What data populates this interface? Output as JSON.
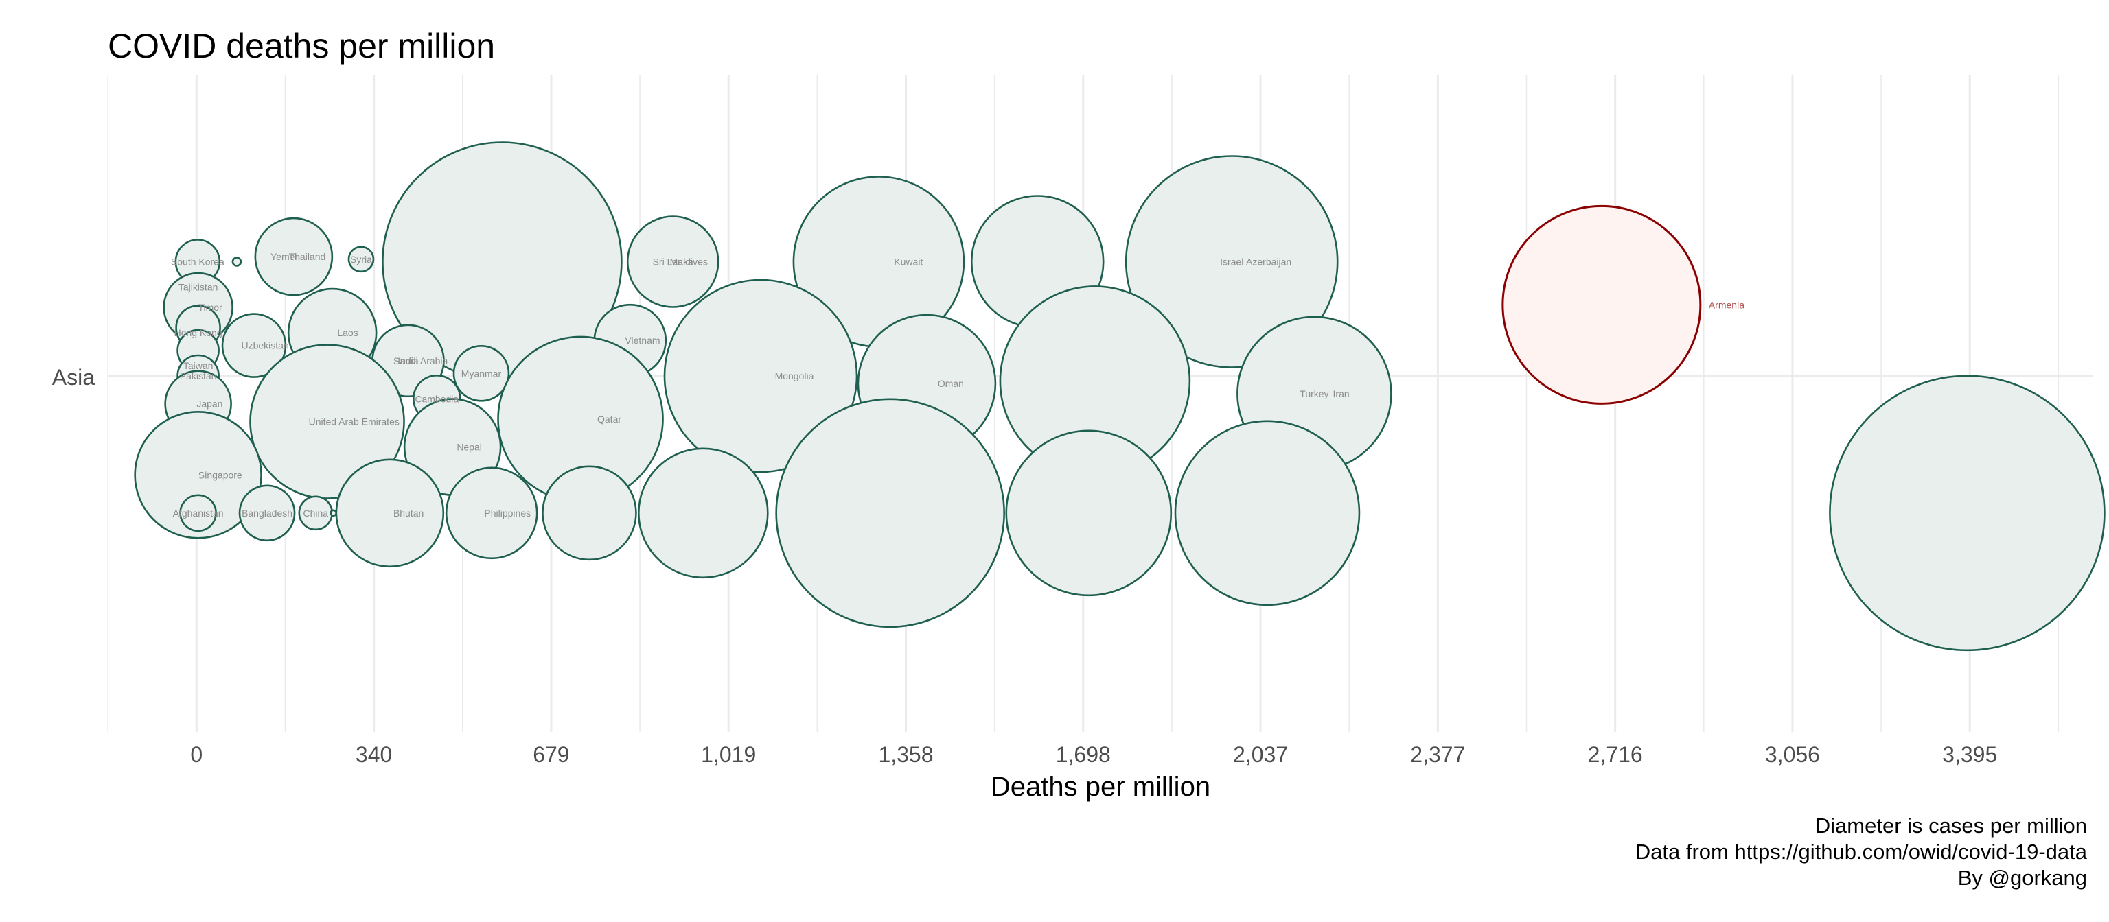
{
  "chart_data": {
    "type": "scatter",
    "title": "COVID deaths per million",
    "xlabel": "Deaths per million",
    "ylabel": "",
    "y_categories": [
      "Asia"
    ],
    "x_ticks": [
      "0",
      "340",
      "679",
      "1,019",
      "1,358",
      "1,698",
      "2,037",
      "2,377",
      "2,716",
      "3,056",
      "3,395"
    ],
    "xlim": [
      -170,
      3630
    ],
    "grid": true,
    "caption": [
      "Diameter is cases per million",
      "Data from https://github.com/owid/covid-19-data",
      "By @gorkang"
    ],
    "colors": {
      "bubble_stroke": "#1f5f4f",
      "bubble_fill": "#e8efed",
      "highlight_stroke": "#8b0000",
      "highlight_fill": "#fff3f2",
      "grid": "#ebebeb"
    },
    "highlight": "Armenia",
    "bubbles": [
      {
        "label": "South Korea",
        "x": 2,
        "offset": 0.45,
        "size": 0.16
      },
      {
        "label": "",
        "x": 77,
        "offset": 0.45,
        "size": 0.03
      },
      {
        "label": "Thailand",
        "x": 186,
        "offset": 0.47,
        "size": 0.28
      },
      {
        "label": "Yemen",
        "x": 170,
        "offset": 0.47,
        "size": 0
      },
      {
        "label": "Syria",
        "x": 315,
        "offset": 0.46,
        "size": 0.09
      },
      {
        "label": "",
        "x": 585,
        "offset": 0.45,
        "size": 0.87
      },
      {
        "label": "Maldives",
        "x": 912,
        "offset": 0.45,
        "size": 0.33
      },
      {
        "label": "Sri Lanka",
        "x": 912,
        "offset": 0.45,
        "size": 0
      },
      {
        "label": "Kuwait",
        "x": 1306,
        "offset": 0.45,
        "size": 0.62
      },
      {
        "label": "",
        "x": 1610,
        "offset": 0.45,
        "size": 0.48
      },
      {
        "label": "Azerbaijan",
        "x": 1982,
        "offset": 0.45,
        "size": 0.77
      },
      {
        "label": "Israel",
        "x": 1982,
        "offset": 0.45,
        "size": 0
      },
      {
        "label": "Tajikistan",
        "x": 3,
        "offset": 0.35,
        "size": 0.07
      },
      {
        "label": "Timor",
        "x": 3,
        "offset": 0.27,
        "size": 0.25
      },
      {
        "label": "Hong Kong",
        "x": 3,
        "offset": 0.17,
        "size": 0.07
      },
      {
        "label": "Uzbekistan",
        "x": 110,
        "offset": 0.12,
        "size": 0.23
      },
      {
        "label": "Laos",
        "x": 260,
        "offset": 0.17,
        "size": 0.32
      },
      {
        "label": "India",
        "x": 405,
        "offset": 0.06,
        "size": 0
      },
      {
        "label": "Saudi Arabia",
        "x": 405,
        "offset": 0.06,
        "size": 0.26
      },
      {
        "label": "Vietnam",
        "x": 830,
        "offset": 0.14,
        "size": 0.26
      },
      {
        "label": "Mongolia",
        "x": 1080,
        "offset": 0,
        "size": 0.7
      },
      {
        "label": "Oman",
        "x": 1398,
        "offset": -0.03,
        "size": 0.5
      },
      {
        "label": "",
        "x": 1720,
        "offset": -0.02,
        "size": 0.69
      },
      {
        "label": "Iran",
        "x": 2140,
        "offset": -0.07,
        "size": 0.56
      },
      {
        "label": "Turkey",
        "x": 2140,
        "offset": -0.07,
        "size": 0
      },
      {
        "label": "Armenia",
        "x": 2690,
        "offset": 0.28,
        "size": 0.72
      },
      {
        "label": "",
        "x": 3,
        "offset": 0.19,
        "size": 0.16
      },
      {
        "label": "",
        "x": 3,
        "offset": 0.1,
        "size": 0.15
      },
      {
        "label": "Taiwan",
        "x": 3,
        "offset": 0.04,
        "size": 0.05
      },
      {
        "label": "Pakistan",
        "x": 3,
        "offset": 0,
        "size": 0.15
      },
      {
        "label": "Japan",
        "x": 3,
        "offset": -0.11,
        "size": 0.24
      },
      {
        "label": "Myanmar",
        "x": 545,
        "offset": 0.01,
        "size": 0.2
      },
      {
        "label": "Cambodia",
        "x": 460,
        "offset": -0.09,
        "size": 0.17
      },
      {
        "label": "United Arab Emirates",
        "x": 250,
        "offset": -0.18,
        "size": 0.56
      },
      {
        "label": "Qatar",
        "x": 735,
        "offset": -0.17,
        "size": 0.6
      },
      {
        "label": "Nepal",
        "x": 490,
        "offset": -0.28,
        "size": 0.35
      },
      {
        "label": "Singapore",
        "x": 3,
        "offset": -0.39,
        "size": 0.46
      },
      {
        "label": "Afghanistan",
        "x": 3,
        "offset": -0.54,
        "size": 0.13
      },
      {
        "label": "Bangladesh",
        "x": 135,
        "offset": -0.54,
        "size": 0.2
      },
      {
        "label": "China",
        "x": 228,
        "offset": -0.54,
        "size": 0.12
      },
      {
        "label": "",
        "x": 262,
        "offset": -0.54,
        "size": 0.02
      },
      {
        "label": "Bhutan",
        "x": 370,
        "offset": -0.54,
        "size": 0.39
      },
      {
        "label": "Philippines",
        "x": 565,
        "offset": -0.54,
        "size": 0.33
      },
      {
        "label": "",
        "x": 752,
        "offset": -0.54,
        "size": 0.34
      },
      {
        "label": "",
        "x": 970,
        "offset": -0.54,
        "size": 0.47
      },
      {
        "label": "",
        "x": 1328,
        "offset": -0.54,
        "size": 0.83
      },
      {
        "label": "",
        "x": 1708,
        "offset": -0.54,
        "size": 0.6
      },
      {
        "label": "",
        "x": 2050,
        "offset": -0.54,
        "size": 0.67
      },
      {
        "label": "",
        "x": 3390,
        "offset": -0.54,
        "size": 1.0
      }
    ]
  }
}
